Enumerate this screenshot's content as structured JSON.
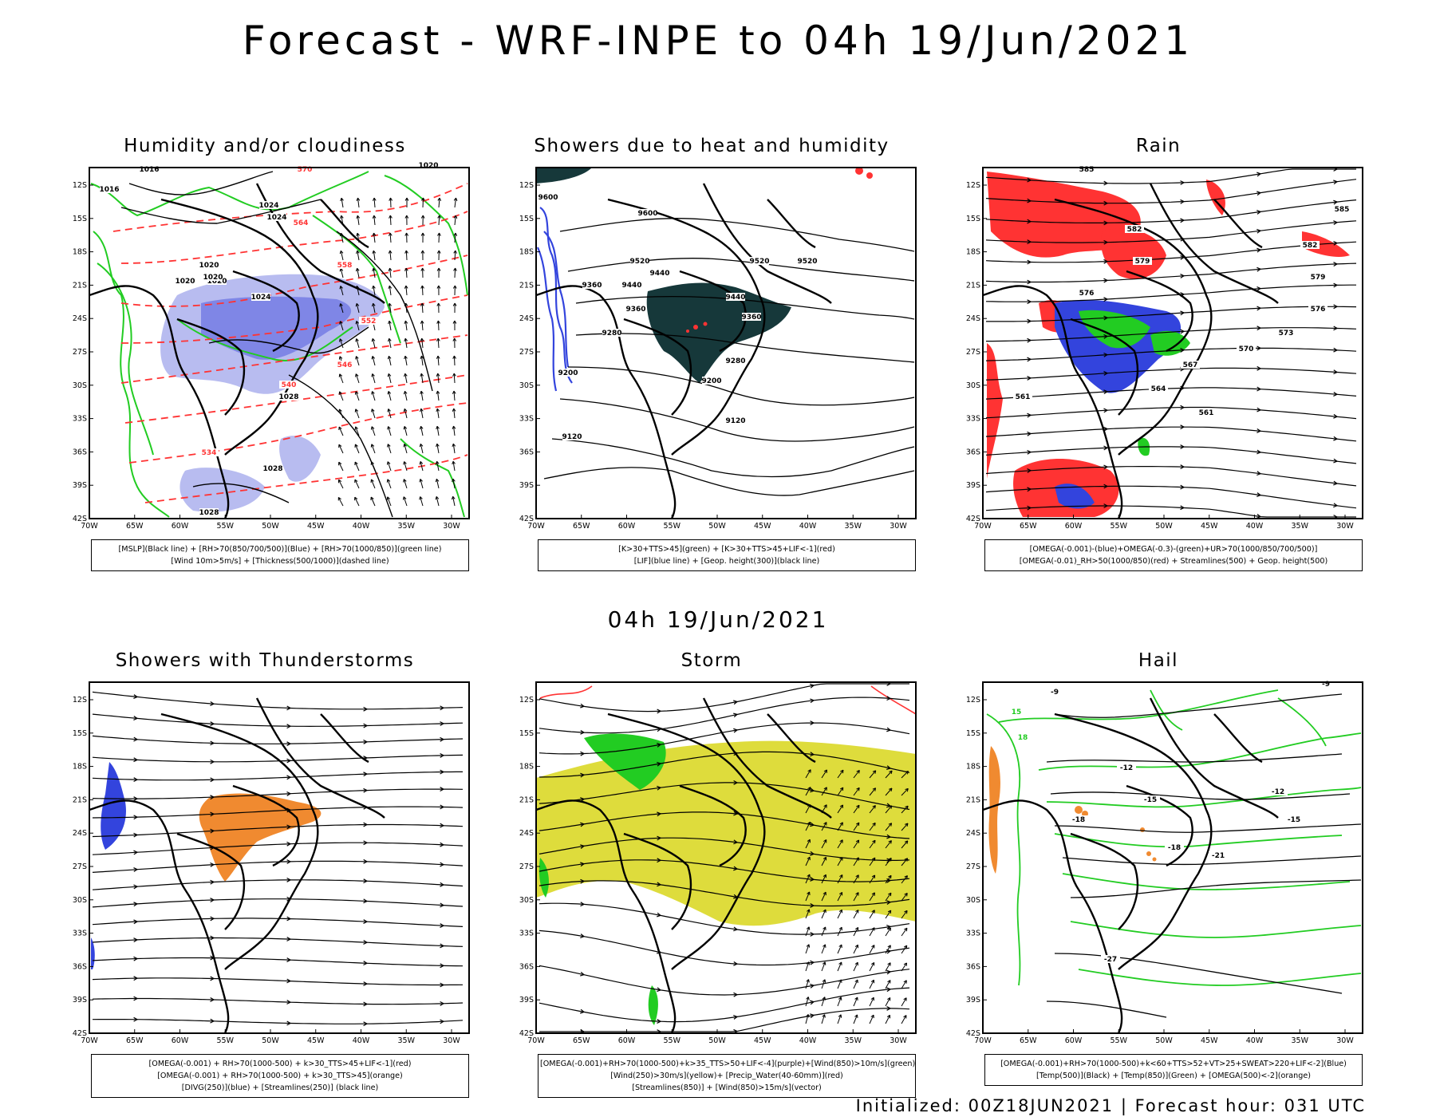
{
  "main_title": "Forecast - WRF-INPE to 04h 19/Jun/2021",
  "mid_title": "04h 19/Jun/2021",
  "footer": "Initialized: 00Z18JUN2021 | Forecast hour: 031 UTC",
  "lat_labels": [
    "12S",
    "15S",
    "18S",
    "21S",
    "24S",
    "27S",
    "30S",
    "33S",
    "36S",
    "39S",
    "42S"
  ],
  "lon_labels": [
    "70W",
    "65W",
    "60W",
    "55W",
    "50W",
    "45W",
    "40W",
    "35W",
    "30W"
  ],
  "colors": {
    "black": "#000000",
    "blue": "#3344dd",
    "lavender": "#9a9ee8",
    "green": "#22cc22",
    "red": "#ff3333",
    "orange": "#f08a30",
    "teal": "#16383a",
    "yellow": "#dedc3c"
  },
  "panels": [
    {
      "title": "Humidity and/or cloudiness",
      "legend": [
        "[MSLP](Black line) + [RH>70(850/700/500)](Blue) + [RH>70(1000/850)](green line)",
        "[Wind 10m>5m/s] + [Thickness(500/1000)](dashed line)"
      ],
      "labels": [
        "1016",
        "1016",
        "1020",
        "1020",
        "1024",
        "1020",
        "1020",
        "1024",
        "1024",
        "1028",
        "1028",
        "1028",
        "570",
        "564",
        "558",
        "552",
        "546",
        "540",
        "534",
        "1020"
      ]
    },
    {
      "title": "Showers due to heat and humidity",
      "legend": [
        "[K>30+TTS>45](green) + [K>30+TTS>45+LIF<-1](red)",
        "[LIF](blue line) + [Geop. height(300)](black line)"
      ],
      "labels": [
        "9600",
        "9600",
        "9520",
        "9520",
        "9520",
        "9440",
        "9440",
        "9440",
        "9360",
        "9360",
        "9360",
        "9280",
        "9280",
        "9200",
        "9200",
        "9120",
        "9120"
      ]
    },
    {
      "title": "Rain",
      "legend": [
        "[OMEGA(-0.001)-(blue)+OMEGA(-0.3)-(green)+UR>70(1000/850/700/500)]",
        "[OMEGA(-0.01)_RH>50(1000/850)(red) + Streamlines(500) + Geop. height(500)"
      ],
      "labels": [
        "585",
        "585",
        "582",
        "582",
        "579",
        "579",
        "576",
        "576",
        "573",
        "570",
        "567",
        "564",
        "561",
        "561"
      ]
    },
    {
      "title": "Showers with Thunderstorms",
      "legend": [
        "[OMEGA(-0.001) + RH>70(1000-500) + k>30_TTS>45+LIF<-1](red)",
        "[OMEGA(-0.001) + RH>70(1000-500) + k>30_TTS>45](orange)",
        "[DIVG(250)](blue) + [Streamlines(250)] (black line)"
      ],
      "labels": []
    },
    {
      "title": "Storm",
      "legend": [
        "[OMEGA(-0.001)+RH>70(1000-500)+k>35_TTS>50+LIF<-4](purple)+[Wind(850)>10m/s](green)",
        "[Wind(250)>30m/s](yellow)+ [Precip_Water(40-60mm)](red)",
        "[Streamlines(850)] + [Wind(850)>15m/s](vector)"
      ],
      "labels": []
    },
    {
      "title": "Hail",
      "legend": [
        "[OMEGA(-0.001)+RH>70(1000-500)+k<60+TTS>52+VT>25+SWEAT>220+LIF<-2](Blue)",
        "[Temp(500)](Black) + [Temp(850)](Green) + [OMEGA(500)<-2](orange)"
      ],
      "labels": [
        "-9",
        "-12",
        "-12",
        "-15",
        "-15",
        "-18",
        "-18",
        "-21",
        "-27",
        "-9",
        "15",
        "18"
      ]
    }
  ]
}
